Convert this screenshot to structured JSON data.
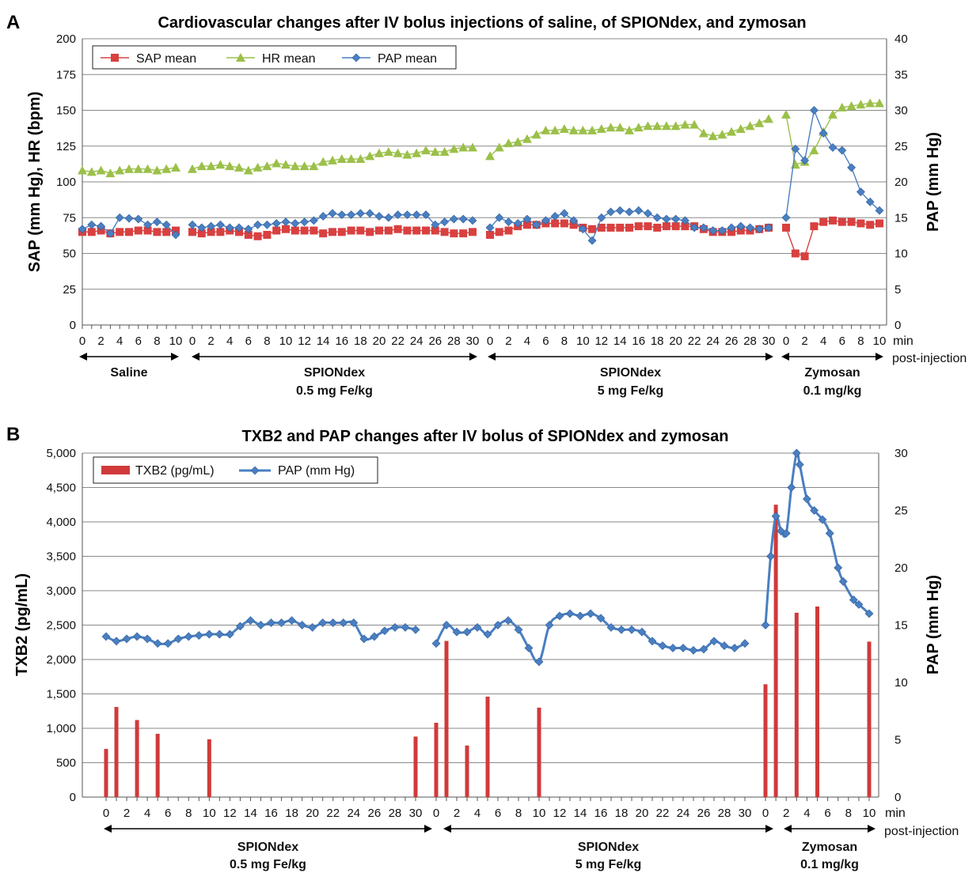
{
  "colors": {
    "sap": "#d94040",
    "hr": "#9bc049",
    "pap": "#4a7fc1",
    "grid": "#8a8a8a",
    "axis": "#555555",
    "text": "#111111",
    "bar": "#d03a3a"
  },
  "panelA": {
    "label": "A",
    "title": "Cardiovascular changes after IV bolus injections of saline, of SPIONdex, and zymosan",
    "ylabel_left": "SAP (mm Hg), HR (bpm)",
    "ylabel_right": "PAP (mm Hg)",
    "x_unit": "min",
    "x_unit2": "post-injection",
    "groups": [
      {
        "name": "Saline",
        "dose": ""
      },
      {
        "name": "SPIONdex",
        "dose": "0.5 mg Fe/kg"
      },
      {
        "name": "SPIONdex",
        "dose": "5 mg Fe/kg"
      },
      {
        "name": "Zymosan",
        "dose": "0.1 mg/kg"
      }
    ]
  },
  "panelB": {
    "label": "B",
    "title": "TXB2 and PAP changes after IV bolus of SPIONdex and zymosan",
    "ylabel_left": "TXB2 (pg/mL)",
    "ylabel_right": "PAP (mm Hg)",
    "x_unit": "min",
    "x_unit2": "post-injection",
    "groups": [
      {
        "name": "SPIONdex",
        "dose": "0.5 mg Fe/kg"
      },
      {
        "name": "SPIONdex",
        "dose": "5 mg Fe/kg"
      },
      {
        "name": "Zymosan",
        "dose": "0.1 mg/kg"
      }
    ]
  },
  "chart_data": [
    {
      "type": "line",
      "title": "Cardiovascular changes after IV bolus injections of saline, of SPIONdex, and zymosan",
      "xlabel": "min post-injection",
      "ylabel": "SAP (mm Hg), HR (bpm)",
      "ylabel_right": "PAP (mm Hg)",
      "ylim": [
        0,
        200
      ],
      "yticks": [
        "0",
        "25",
        "50",
        "75",
        "100",
        "125",
        "150",
        "175",
        "200"
      ],
      "ylim_right": [
        0,
        40
      ],
      "yticks_right": [
        "0",
        "5",
        "10",
        "15",
        "20",
        "25",
        "30",
        "35",
        "40"
      ],
      "grid": true,
      "legend": "top-left",
      "segments": [
        {
          "name": "Saline",
          "dose": "",
          "x": [
            0,
            1,
            2,
            3,
            4,
            5,
            6,
            7,
            8,
            9,
            10
          ],
          "xticks": [
            "0",
            "2",
            "4",
            "6",
            "8",
            "10"
          ],
          "sap": [
            65,
            65,
            66,
            64,
            65,
            65,
            66,
            66,
            65,
            65,
            66
          ],
          "hr": [
            108,
            107,
            108,
            106,
            108,
            109,
            109,
            109,
            108,
            109,
            110
          ],
          "pap": [
            13.4,
            14.0,
            13.8,
            12.8,
            15.0,
            14.9,
            14.8,
            14.0,
            14.4,
            14.0,
            12.6
          ]
        },
        {
          "name": "SPIONdex",
          "dose": "0.5 mg Fe/kg",
          "x": [
            0,
            1,
            2,
            3,
            4,
            5,
            6,
            7,
            8,
            9,
            10,
            11,
            12,
            13,
            14,
            15,
            16,
            17,
            18,
            19,
            20,
            21,
            22,
            23,
            24,
            25,
            26,
            27,
            28,
            29,
            30
          ],
          "xticks": [
            "0",
            "2",
            "4",
            "6",
            "8",
            "10",
            "12",
            "14",
            "16",
            "18",
            "20",
            "22",
            "24",
            "26",
            "28",
            "30"
          ],
          "sap": [
            65,
            64,
            65,
            65,
            66,
            65,
            63,
            62,
            63,
            66,
            67,
            66,
            66,
            66,
            64,
            65,
            65,
            66,
            66,
            65,
            66,
            66,
            67,
            66,
            66,
            66,
            66,
            65,
            64,
            64,
            65
          ],
          "hr": [
            109,
            111,
            111,
            112,
            111,
            110,
            108,
            110,
            111,
            113,
            112,
            111,
            111,
            111,
            114,
            115,
            116,
            116,
            116,
            118,
            120,
            121,
            120,
            119,
            120,
            122,
            121,
            121,
            123,
            124,
            124
          ],
          "pap": [
            14.0,
            13.6,
            13.8,
            14.0,
            13.6,
            13.6,
            13.4,
            14.0,
            14.0,
            14.2,
            14.4,
            14.2,
            14.4,
            14.6,
            15.2,
            15.6,
            15.4,
            15.4,
            15.6,
            15.6,
            15.2,
            15.0,
            15.4,
            15.4,
            15.4,
            15.4,
            14.0,
            14.4,
            14.8,
            14.8,
            14.6
          ]
        },
        {
          "name": "SPIONdex",
          "dose": "5 mg Fe/kg",
          "x": [
            0,
            1,
            2,
            3,
            4,
            5,
            6,
            7,
            8,
            9,
            10,
            11,
            12,
            13,
            14,
            15,
            16,
            17,
            18,
            19,
            20,
            21,
            22,
            23,
            24,
            25,
            26,
            27,
            28,
            29,
            30
          ],
          "xticks": [
            "0",
            "2",
            "4",
            "6",
            "8",
            "10",
            "12",
            "14",
            "16",
            "18",
            "20",
            "22",
            "24",
            "26",
            "28",
            "30"
          ],
          "sap": [
            63,
            65,
            66,
            69,
            70,
            70,
            71,
            71,
            71,
            70,
            68,
            67,
            68,
            68,
            68,
            68,
            69,
            69,
            68,
            69,
            69,
            69,
            69,
            67,
            65,
            65,
            65,
            66,
            66,
            67,
            68
          ],
          "hr": [
            118,
            124,
            127,
            128,
            130,
            133,
            136,
            136,
            137,
            136,
            136,
            136,
            137,
            138,
            138,
            136,
            138,
            139,
            139,
            139,
            139,
            140,
            140,
            134,
            132,
            133,
            135,
            137,
            139,
            141,
            144
          ],
          "pap": [
            13.6,
            15.0,
            14.4,
            14.2,
            14.8,
            14.0,
            14.6,
            15.2,
            15.6,
            14.6,
            13.4,
            11.8,
            15.0,
            15.8,
            16.0,
            15.8,
            16.0,
            15.6,
            15.0,
            14.8,
            14.8,
            14.6,
            13.6,
            13.6,
            13.2,
            13.2,
            13.6,
            13.8,
            13.6,
            13.4,
            13.6
          ]
        },
        {
          "name": "Zymosan",
          "dose": "0.1 mg/kg",
          "x": [
            0,
            1,
            2,
            3,
            4,
            5,
            6,
            7,
            8,
            9,
            10
          ],
          "xticks": [
            "0",
            "2",
            "4",
            "6",
            "8",
            "10"
          ],
          "sap": [
            68,
            50,
            48,
            69,
            72,
            73,
            72,
            72,
            71,
            70,
            71
          ],
          "hr": [
            147,
            112,
            114,
            122,
            135,
            147,
            152,
            153,
            154,
            155,
            155
          ],
          "pap": [
            15.0,
            24.6,
            23.0,
            30.0,
            26.8,
            24.8,
            24.4,
            22.0,
            18.6,
            17.2,
            16.0
          ]
        }
      ],
      "series": [
        {
          "name": "SAP mean",
          "axis": "left",
          "marker": "square"
        },
        {
          "name": "HR mean",
          "axis": "left",
          "marker": "triangle"
        },
        {
          "name": "PAP mean",
          "axis": "right",
          "marker": "diamond"
        }
      ]
    },
    {
      "type": "bar",
      "title": "TXB2 and PAP changes after IV bolus of SPIONdex and zymosan",
      "xlabel": "min post-injection",
      "ylabel": "TXB2 (pg/mL)",
      "ylabel_right": "PAP (mm Hg)",
      "ylim": [
        0,
        5000
      ],
      "yticks": [
        "0",
        "500",
        "1,000",
        "1,500",
        "2,000",
        "2,500",
        "3,000",
        "3,500",
        "4,000",
        "4,500",
        "5,000"
      ],
      "ylim_right": [
        0,
        30
      ],
      "yticks_right": [
        "0",
        "5",
        "10",
        "15",
        "20",
        "25",
        "30"
      ],
      "grid": true,
      "legend": "top-left",
      "series": [
        {
          "name": "TXB2 (pg/mL)",
          "kind": "bar",
          "axis": "left"
        },
        {
          "name": "PAP (mm Hg)",
          "kind": "line",
          "axis": "right"
        }
      ],
      "segments": [
        {
          "name": "SPIONdex",
          "dose": "0.5 mg Fe/kg",
          "x_max": 30,
          "xticks": [
            "0",
            "2",
            "4",
            "6",
            "8",
            "10",
            "12",
            "14",
            "16",
            "18",
            "20",
            "22",
            "24",
            "26",
            "28",
            "30"
          ],
          "txb2": [
            {
              "x": 0,
              "v": 700
            },
            {
              "x": 1,
              "v": 1310
            },
            {
              "x": 3,
              "v": 1120
            },
            {
              "x": 5,
              "v": 920
            },
            {
              "x": 10,
              "v": 840
            },
            {
              "x": 30,
              "v": 880
            }
          ],
          "pap": [
            [
              0,
              14.0
            ],
            [
              1,
              13.6
            ],
            [
              2,
              13.8
            ],
            [
              3,
              14.0
            ],
            [
              4,
              13.8
            ],
            [
              5,
              13.4
            ],
            [
              6,
              13.4
            ],
            [
              7,
              13.8
            ],
            [
              8,
              14.0
            ],
            [
              9,
              14.1
            ],
            [
              10,
              14.2
            ],
            [
              11,
              14.2
            ],
            [
              12,
              14.2
            ],
            [
              13,
              14.9
            ],
            [
              14,
              15.4
            ],
            [
              15,
              15.0
            ],
            [
              16,
              15.2
            ],
            [
              17,
              15.2
            ],
            [
              18,
              15.4
            ],
            [
              19,
              15.0
            ],
            [
              20,
              14.8
            ],
            [
              21,
              15.2
            ],
            [
              22,
              15.2
            ],
            [
              23,
              15.2
            ],
            [
              24,
              15.2
            ],
            [
              25,
              13.8
            ],
            [
              26,
              14.0
            ],
            [
              27,
              14.5
            ],
            [
              28,
              14.8
            ],
            [
              29,
              14.8
            ],
            [
              30,
              14.6
            ]
          ]
        },
        {
          "name": "SPIONdex",
          "dose": "5 mg Fe/kg",
          "x_max": 30,
          "xticks": [
            "0",
            "2",
            "4",
            "6",
            "8",
            "10",
            "12",
            "14",
            "16",
            "18",
            "20",
            "22",
            "24",
            "26",
            "28",
            "30"
          ],
          "txb2": [
            {
              "x": 0,
              "v": 1080
            },
            {
              "x": 1,
              "v": 2270
            },
            {
              "x": 3,
              "v": 750
            },
            {
              "x": 5,
              "v": 1460
            },
            {
              "x": 10,
              "v": 1300
            }
          ],
          "pap": [
            [
              0,
              13.4
            ],
            [
              1,
              15.0
            ],
            [
              2,
              14.4
            ],
            [
              3,
              14.4
            ],
            [
              4,
              14.8
            ],
            [
              5,
              14.2
            ],
            [
              6,
              15.0
            ],
            [
              7,
              15.4
            ],
            [
              8,
              14.6
            ],
            [
              9,
              13.0
            ],
            [
              10,
              11.8
            ],
            [
              11,
              15.0
            ],
            [
              12,
              15.8
            ],
            [
              13,
              16.0
            ],
            [
              14,
              15.8
            ],
            [
              15,
              16.0
            ],
            [
              16,
              15.6
            ],
            [
              17,
              14.8
            ],
            [
              18,
              14.6
            ],
            [
              19,
              14.6
            ],
            [
              20,
              14.4
            ],
            [
              21,
              13.6
            ],
            [
              22,
              13.2
            ],
            [
              23,
              13.0
            ],
            [
              24,
              13.0
            ],
            [
              25,
              12.8
            ],
            [
              26,
              12.9
            ],
            [
              27,
              13.6
            ],
            [
              28,
              13.2
            ],
            [
              29,
              13.0
            ],
            [
              30,
              13.4
            ]
          ]
        },
        {
          "name": "Zymosan",
          "dose": "0.1 mg/kg",
          "x_max": 10,
          "xticks": [
            "0",
            "2",
            "4",
            "6",
            "8",
            "10"
          ],
          "txb2": [
            {
              "x": 0,
              "v": 1640
            },
            {
              "x": 1,
              "v": 4250
            },
            {
              "x": 3,
              "v": 2680
            },
            {
              "x": 5,
              "v": 2770
            },
            {
              "x": 10,
              "v": 2260
            }
          ],
          "pap": [
            [
              0,
              15.0
            ],
            [
              0.5,
              21.0
            ],
            [
              1,
              24.5
            ],
            [
              1.5,
              23.2
            ],
            [
              2,
              23.0
            ],
            [
              2.5,
              27.0
            ],
            [
              3,
              30.0
            ],
            [
              3.3,
              29.0
            ],
            [
              4,
              26.0
            ],
            [
              4.7,
              25.0
            ],
            [
              5.5,
              24.2
            ],
            [
              6.2,
              23.0
            ],
            [
              7,
              20.0
            ],
            [
              7.5,
              18.8
            ],
            [
              8.5,
              17.2
            ],
            [
              9,
              16.8
            ],
            [
              10,
              16.0
            ]
          ]
        }
      ]
    }
  ]
}
